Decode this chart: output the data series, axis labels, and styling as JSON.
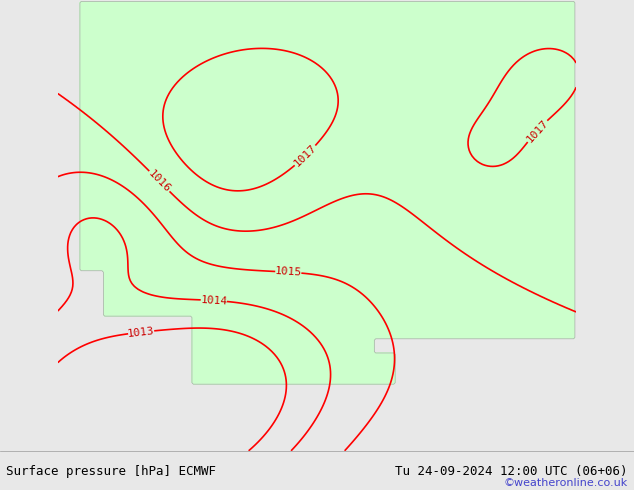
{
  "title_left": "Surface pressure [hPa] ECMWF",
  "title_right": "Tu 24-09-2024 12:00 UTC (06+06)",
  "watermark": "©weatheronline.co.uk",
  "bg_color": "#e8e8e8",
  "land_color": "#ccffcc",
  "sea_color": "#e8e8e8",
  "contour_color": "#ff0000",
  "coast_color": "#aaaaaa",
  "border_color": "#000000",
  "label_color": "#cc0000",
  "watermark_color": "#4444cc",
  "figsize": [
    6.34,
    4.9
  ],
  "dpi": 100,
  "pressure_min": 1013,
  "pressure_max": 1018,
  "pressure_step": 1,
  "font_size_bottom": 9,
  "font_size_labels": 8
}
